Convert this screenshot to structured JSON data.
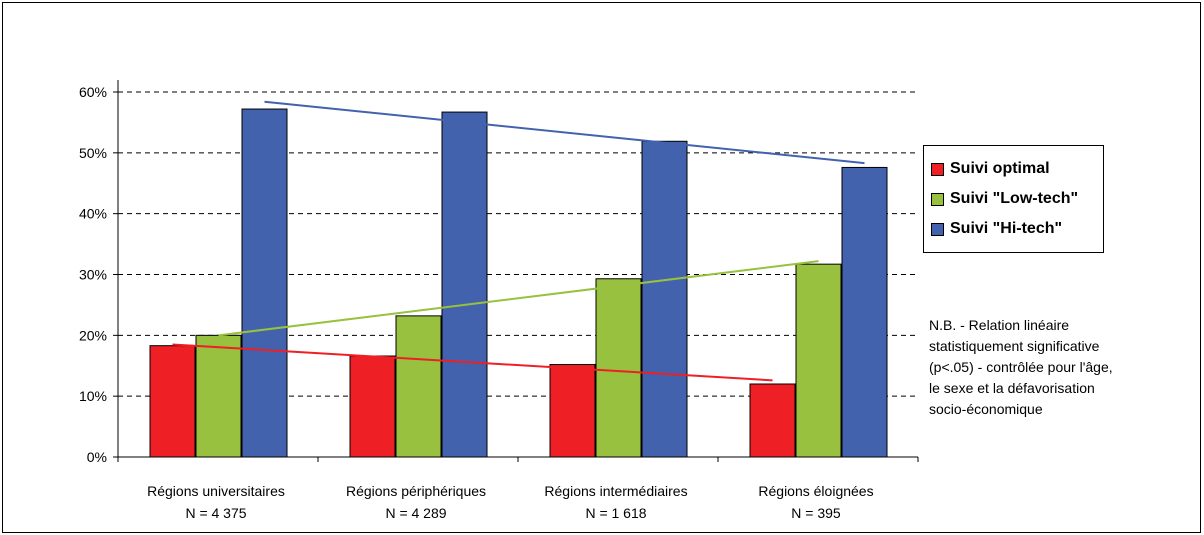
{
  "chart_data": {
    "type": "bar",
    "categories": [
      [
        "Régions universitaires",
        "N = 4 375"
      ],
      [
        "Régions périphériques",
        "N = 4 289"
      ],
      [
        "Régions intermédiaires",
        "N = 1 618"
      ],
      [
        "Régions éloignées",
        "N = 395"
      ]
    ],
    "series": [
      {
        "name": "Suivi optimal",
        "color": "#ee1f25",
        "values": [
          18.3,
          16.6,
          15.2,
          12.0
        ],
        "trend": [
          18.5,
          12.6
        ]
      },
      {
        "name": "Suivi \"Low-tech\"",
        "color": "#97c13e",
        "values": [
          20.0,
          23.2,
          29.3,
          31.7
        ],
        "trend": [
          20.0,
          32.2
        ]
      },
      {
        "name": "Suivi \"Hi-tech\"",
        "color": "#4262ad",
        "values": [
          57.2,
          56.7,
          51.9,
          47.6
        ],
        "trend": [
          58.4,
          48.3
        ]
      }
    ],
    "ylim": [
      0,
      60
    ],
    "yticks": [
      "0%",
      "10%",
      "20%",
      "30%",
      "40%",
      "50%",
      "60%"
    ],
    "ytick_values": [
      0,
      10,
      20,
      30,
      40,
      50,
      60
    ],
    "grid": true,
    "legend_position": "right",
    "title": "",
    "xlabel": "",
    "ylabel": ""
  },
  "note": [
    "N.B. - Relation linéaire",
    "statistiquement significative",
    "(p<.05) - contrôlée pour l'âge,",
    "le sexe et la défavorisation",
    "socio-économique"
  ]
}
